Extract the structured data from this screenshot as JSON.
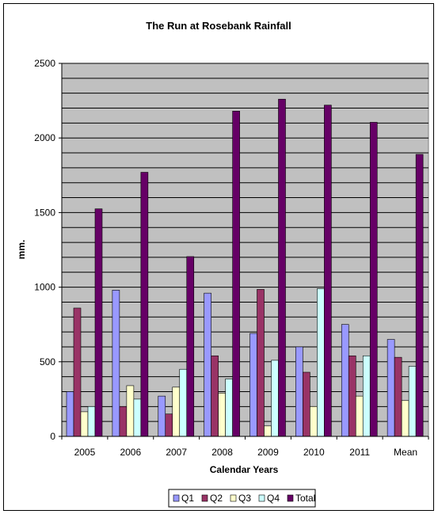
{
  "chart_data": {
    "type": "bar",
    "title": "The Run at Rosebank Rainfall",
    "xlabel": "Calendar Years",
    "ylabel": "mm.",
    "ylim": [
      0,
      2500
    ],
    "yticks": [
      0,
      500,
      1000,
      1500,
      2000,
      2500
    ],
    "grid_step": 100,
    "grid": true,
    "plot_background": "#c0c0c0",
    "legend_position": "bottom",
    "categories": [
      "2005",
      "2006",
      "2007",
      "2008",
      "2009",
      "2010",
      "2011",
      "Mean"
    ],
    "series": [
      {
        "name": "Q1",
        "color": "#9999ff",
        "values": [
          300,
          980,
          270,
          960,
          690,
          600,
          750,
          650
        ]
      },
      {
        "name": "Q2",
        "color": "#993366",
        "values": [
          860,
          200,
          150,
          540,
          985,
          430,
          540,
          530
        ]
      },
      {
        "name": "Q3",
        "color": "#ffffcc",
        "values": [
          165,
          340,
          330,
          290,
          70,
          200,
          270,
          240
        ]
      },
      {
        "name": "Q4",
        "color": "#ccffff",
        "values": [
          200,
          250,
          450,
          385,
          510,
          990,
          540,
          470
        ]
      },
      {
        "name": "Total",
        "color": "#660066",
        "values": [
          1525,
          1770,
          1205,
          2180,
          2260,
          2220,
          2105,
          1890
        ]
      }
    ]
  }
}
